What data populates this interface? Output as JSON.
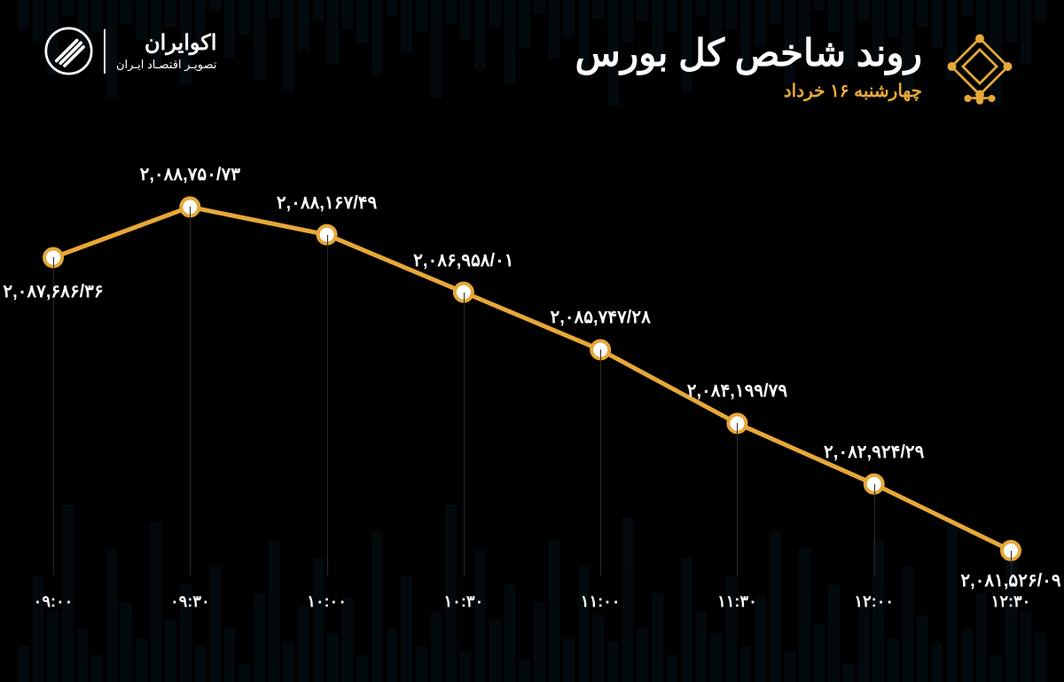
{
  "header": {
    "title": "روند شاخص کل بورس",
    "subtitle": "چهارشنبه ۱۶ خرداد"
  },
  "brand": {
    "name": "اکوایران",
    "tagline": "تصویـر اقتصـاد ایـران"
  },
  "chart": {
    "type": "line",
    "line_color": "#e6a838",
    "line_width": 5,
    "marker_size": 10,
    "marker_fill": "#ffffff",
    "marker_stroke": "#e6a838",
    "marker_stroke_width": 4,
    "grid_color": "#2a2a2a",
    "label_color": "#ffffff",
    "label_fontsize": 20,
    "xlabel_fontsize": 18,
    "x_labels": [
      "۰۹:۰۰",
      "۰۹:۳۰",
      "۱۰:۰۰",
      "۱۰:۳۰",
      "۱۱:۰۰",
      "۱۱:۳۰",
      "۱۲:۰۰",
      "۱۲:۳۰"
    ],
    "point_labels": [
      "۲,۰۸۷,۶۸۶/۳۶",
      "۲,۰۸۸,۷۵۰/۷۳",
      "۲,۰۸۸,۱۶۷/۴۹",
      "۲,۰۸۶,۹۵۸/۰۱",
      "۲,۰۸۵,۷۴۷/۲۸",
      "۲,۰۸۴,۱۹۹/۷۹",
      "۲,۰۸۲,۹۲۴/۲۹",
      "۲,۰۸۱,۵۲۶/۰۹"
    ],
    "values": [
      2087686.36,
      2088750.73,
      2088167.49,
      2086958.01,
      2085747.28,
      2084199.79,
      2082924.29,
      2081526.09
    ],
    "ylim_min": 2081000,
    "ylim_max": 2089000,
    "label_offsets_y": [
      40,
      -35,
      -35,
      -35,
      -35,
      -35,
      -35,
      35
    ],
    "bg_bar_heights": [
      40,
      120,
      80,
      200,
      60,
      30,
      150,
      90,
      50,
      180,
      70,
      110,
      40,
      130,
      60,
      20,
      100,
      160,
      45,
      85,
      140,
      55,
      95,
      30,
      170,
      60,
      120,
      40,
      80,
      200,
      35,
      150,
      70,
      110,
      25,
      90,
      160,
      50,
      130,
      75,
      45,
      185,
      60,
      100,
      30,
      140,
      80,
      55,
      120,
      40,
      95,
      170,
      35,
      150,
      65,
      110,
      20,
      90,
      160,
      50,
      130,
      75,
      45,
      185,
      60,
      100,
      30,
      140,
      80,
      55
    ]
  },
  "colors": {
    "background": "#000000",
    "accent": "#e6a838",
    "text": "#ffffff",
    "bg_bar": "#0a2a3a",
    "emblem": "#e6a838"
  }
}
